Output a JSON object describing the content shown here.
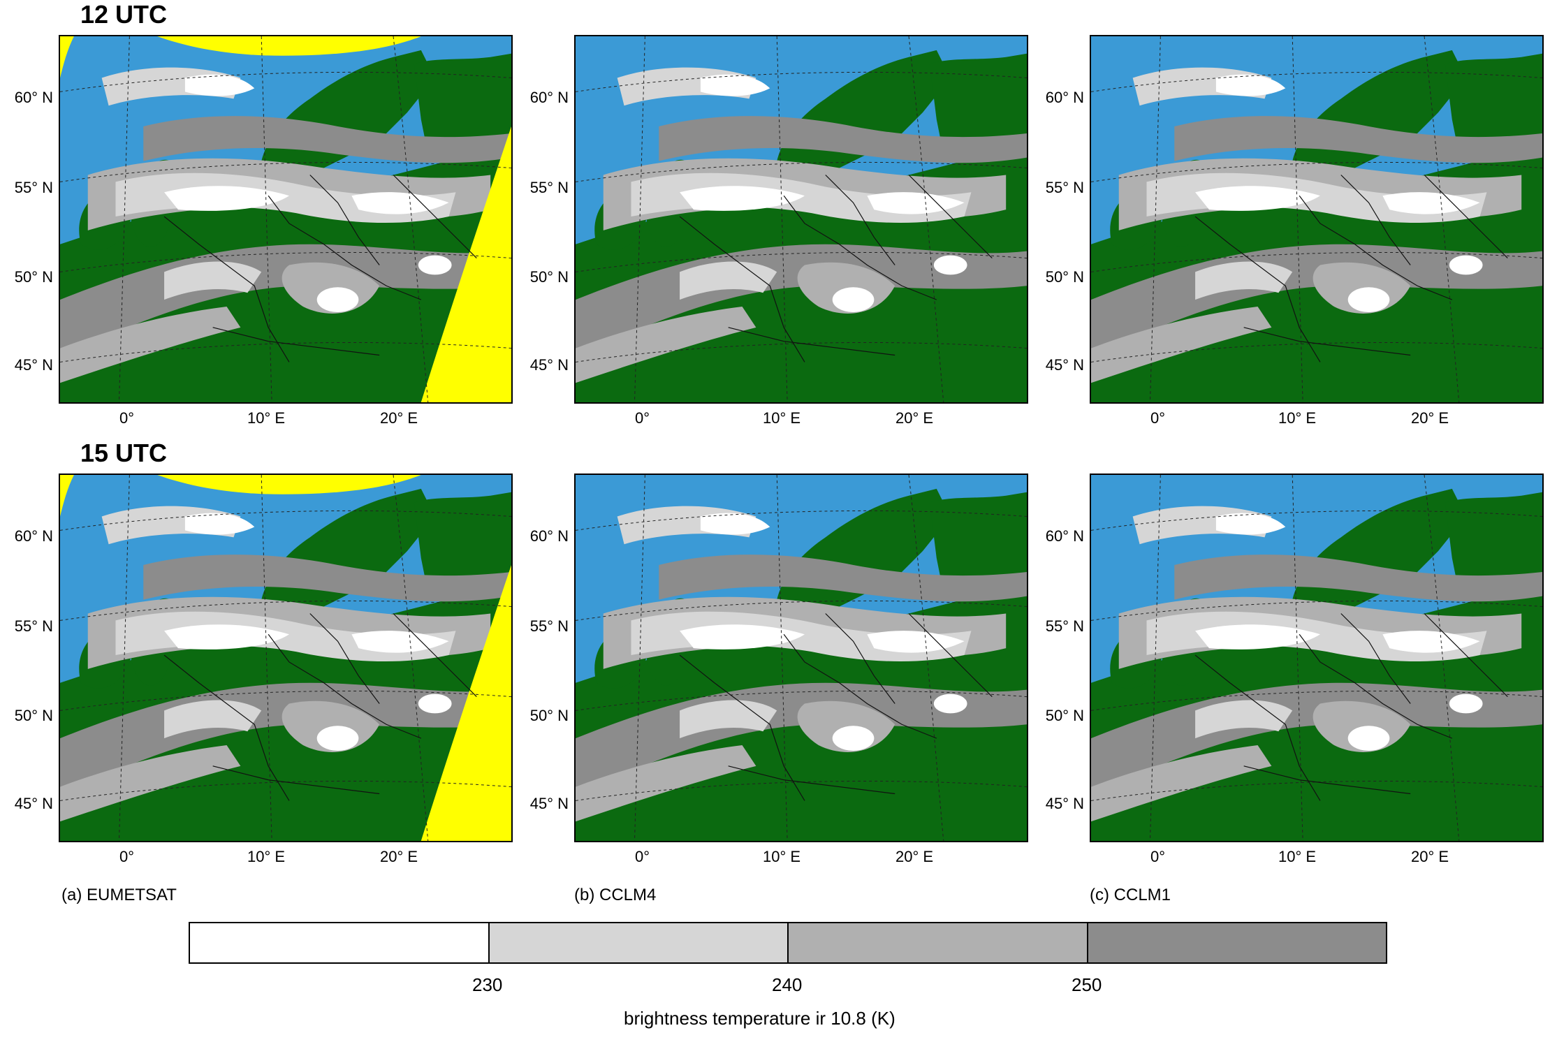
{
  "rows": [
    {
      "title": "12 UTC"
    },
    {
      "title": "15 UTC"
    }
  ],
  "columns": [
    {
      "caption": "(a) EUMETSAT",
      "source": "satellite"
    },
    {
      "caption": "(b) CCLM4",
      "source": "model"
    },
    {
      "caption": "(c) CCLM1",
      "source": "model"
    }
  ],
  "lat_labels": [
    "60° N",
    "55° N",
    "50° N",
    "45° N"
  ],
  "lon_labels": [
    "0°",
    "10° E",
    "20° E"
  ],
  "colors": {
    "sea": "#3b9ad6",
    "land": "#0b6a10",
    "no_data": "#ffff00",
    "cloud_lt230": "#ffffff",
    "cloud_230_240": "#d6d6d6",
    "cloud_240_250": "#b0b0b0",
    "cloud_gt250": "#8c8c8c"
  },
  "colorbar": {
    "ticks": [
      "230",
      "240",
      "250"
    ],
    "label": "brightness temperature ir 10.8 (K)",
    "colors": [
      "#ffffff",
      "#d6d6d6",
      "#b0b0b0",
      "#8c8c8c"
    ]
  }
}
